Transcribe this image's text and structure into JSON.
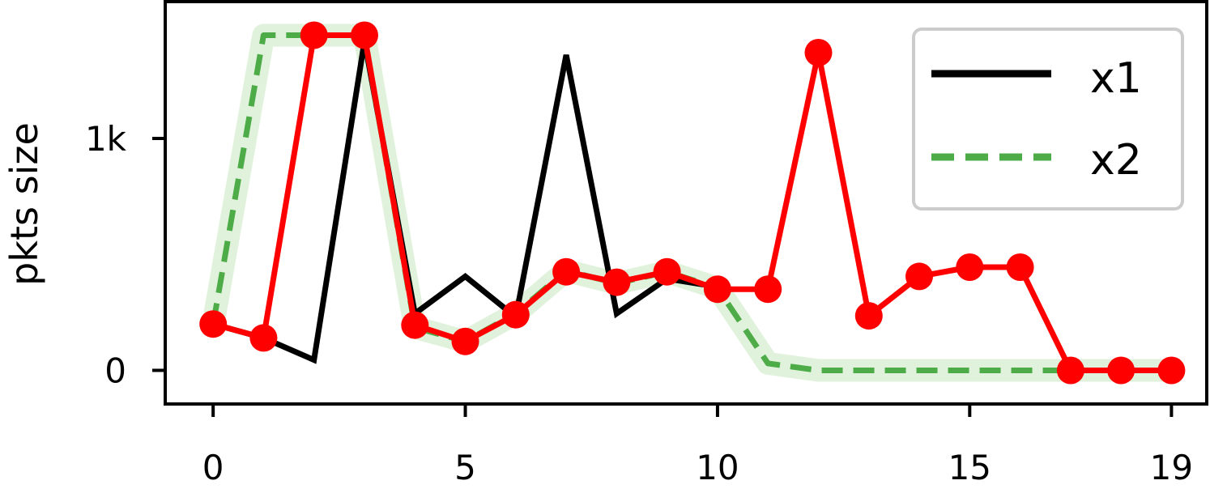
{
  "chart_data": {
    "type": "line",
    "x": [
      0,
      1,
      2,
      3,
      4,
      5,
      6,
      7,
      8,
      9,
      10,
      11,
      12,
      13,
      14,
      15,
      16,
      17,
      18,
      19
    ],
    "xticks": [
      0,
      5,
      10,
      15,
      19
    ],
    "xtick_labels": [
      "0",
      "5",
      "10",
      "15",
      "19"
    ],
    "yticks": [
      0,
      1000
    ],
    "ytick_labels": [
      "0",
      "1k"
    ],
    "xlim": [
      -0.95,
      19.7
    ],
    "ylim": [
      -145,
      1590
    ],
    "xlabel": "",
    "ylabel": "pkts size",
    "legend_position": "top-right",
    "series": [
      {
        "name": "x1",
        "style": "solid",
        "color": "#000000",
        "values": [
          200,
          140,
          45,
          1420,
          245,
          405,
          230,
          1360,
          245,
          395,
          360,
          null,
          null,
          null,
          null,
          null,
          null,
          null,
          null,
          null
        ]
      },
      {
        "name": "x2",
        "style": "dashed",
        "color": "#4dac47",
        "band_color": "#e0f2dc",
        "values": [
          200,
          1445,
          1445,
          1445,
          185,
          125,
          245,
          430,
          375,
          425,
          355,
          30,
          0,
          0,
          0,
          0,
          0,
          0,
          0,
          0
        ]
      },
      {
        "style": "solid-marker",
        "color": "#ff0000",
        "values": [
          200,
          140,
          1445,
          1445,
          195,
          125,
          240,
          425,
          380,
          425,
          350,
          350,
          1370,
          235,
          405,
          445,
          445,
          0,
          0,
          0
        ]
      }
    ]
  }
}
